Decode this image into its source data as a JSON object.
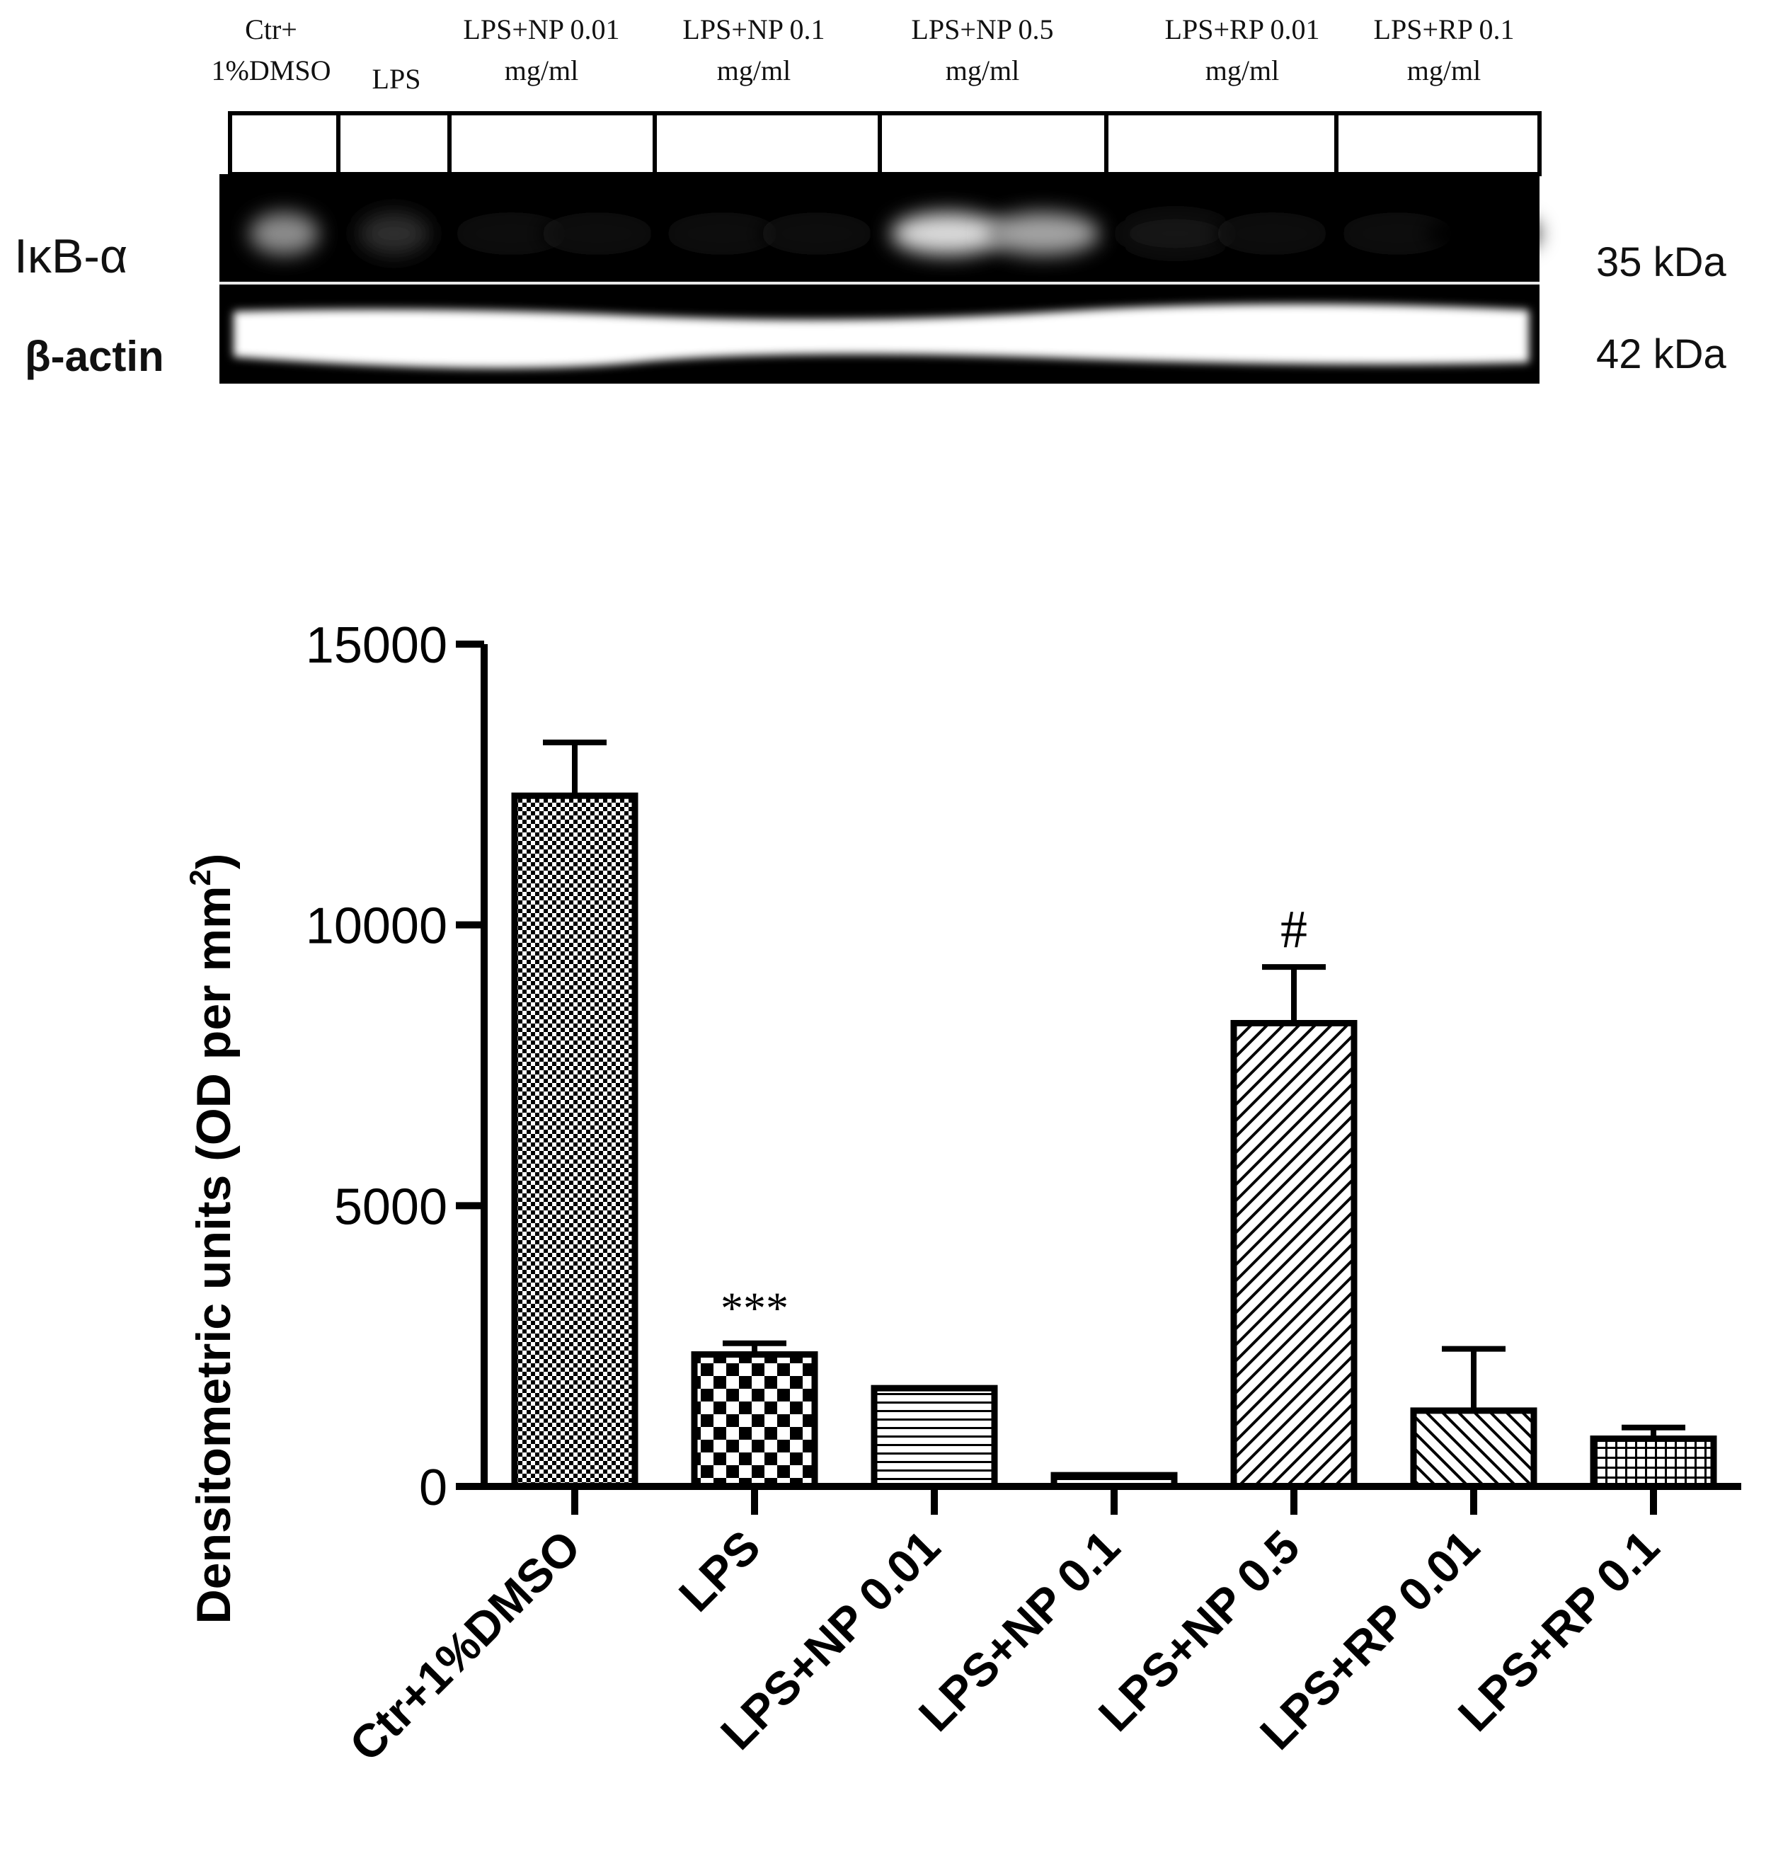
{
  "blot": {
    "lane_labels": [
      [
        "Ctr+",
        "1%DMSO"
      ],
      [
        "LPS"
      ],
      [
        "LPS+NP 0.01",
        "mg/ml"
      ],
      [
        "LPS+NP 0.1",
        "mg/ml"
      ],
      [
        "LPS+NP 0.5",
        "mg/ml"
      ],
      [
        "LPS+RP 0.01",
        "mg/ml"
      ],
      [
        "LPS+RP 0.1",
        "mg/ml"
      ]
    ],
    "rows": [
      {
        "label": "IκB-α",
        "size": "35 kDa"
      },
      {
        "label": "β-actin",
        "size": "42  kDa"
      }
    ],
    "band_intensity_ikb": [
      0.55,
      0.18,
      0.06,
      0.04,
      0.85,
      0.08,
      0.03
    ]
  },
  "chart_data": {
    "type": "bar",
    "title": "",
    "xlabel": "",
    "ylabel": "Densitometric units (OD per mm",
    "ylabel_sup": "2",
    "ylabel_close": ")",
    "ylim": [
      0,
      15000
    ],
    "yticks": [
      "0",
      "5000",
      "10000",
      "15000"
    ],
    "categories": [
      "Ctr+1%DMSO",
      "LPS",
      "LPS+NP 0.01",
      "LPS+NP 0.1",
      "LPS+NP 0.5",
      "LPS+RP 0.01",
      "LPS+RP 0.1"
    ],
    "values": [
      12300,
      2350,
      1750,
      200,
      8250,
      1350,
      850
    ],
    "errors": [
      950,
      200,
      0,
      0,
      1000,
      1100,
      200
    ],
    "annotations": [
      "",
      "***",
      "",
      "",
      "#",
      "",
      ""
    ],
    "patterns": [
      "fine-check",
      "coarse-check",
      "horizontal-lines",
      "horizontal-lines",
      "diagonal-right",
      "diagonal-left",
      "grid"
    ],
    "grid": false,
    "legend": "none"
  }
}
